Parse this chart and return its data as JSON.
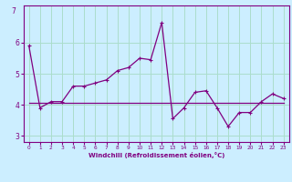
{
  "title": "",
  "xlabel": "Windchill (Refroidissement éolien,°C)",
  "ylabel": "",
  "bg_color": "#cceeff",
  "line_color": "#800080",
  "line_color2": "#800080",
  "grid_color": "#aaddcc",
  "x": [
    0,
    1,
    2,
    3,
    4,
    5,
    6,
    7,
    8,
    9,
    10,
    11,
    12,
    13,
    14,
    15,
    16,
    17,
    18,
    19,
    20,
    21,
    22,
    23
  ],
  "y_curve": [
    5.9,
    3.9,
    4.1,
    4.1,
    4.6,
    4.6,
    4.7,
    4.8,
    5.1,
    5.2,
    5.5,
    5.45,
    6.65,
    3.55,
    3.9,
    4.4,
    4.45,
    3.9,
    3.3,
    3.75,
    3.75,
    4.1,
    4.35,
    4.2
  ],
  "y_flat": [
    4.05,
    4.05,
    4.05,
    4.05,
    4.05,
    4.05,
    4.05,
    4.05,
    4.05,
    4.05,
    4.05,
    4.05,
    4.05,
    4.05,
    4.05,
    4.05,
    4.05,
    4.05,
    4.05,
    4.05,
    4.05,
    4.05,
    4.05,
    4.05
  ],
  "ylim": [
    2.8,
    7.2
  ],
  "xlim": [
    -0.5,
    23.5
  ],
  "yticks": [
    3,
    4,
    5,
    6
  ],
  "ytick_extra": 7,
  "xticks": [
    0,
    1,
    2,
    3,
    4,
    5,
    6,
    7,
    8,
    9,
    10,
    11,
    12,
    13,
    14,
    15,
    16,
    17,
    18,
    19,
    20,
    21,
    22,
    23
  ]
}
